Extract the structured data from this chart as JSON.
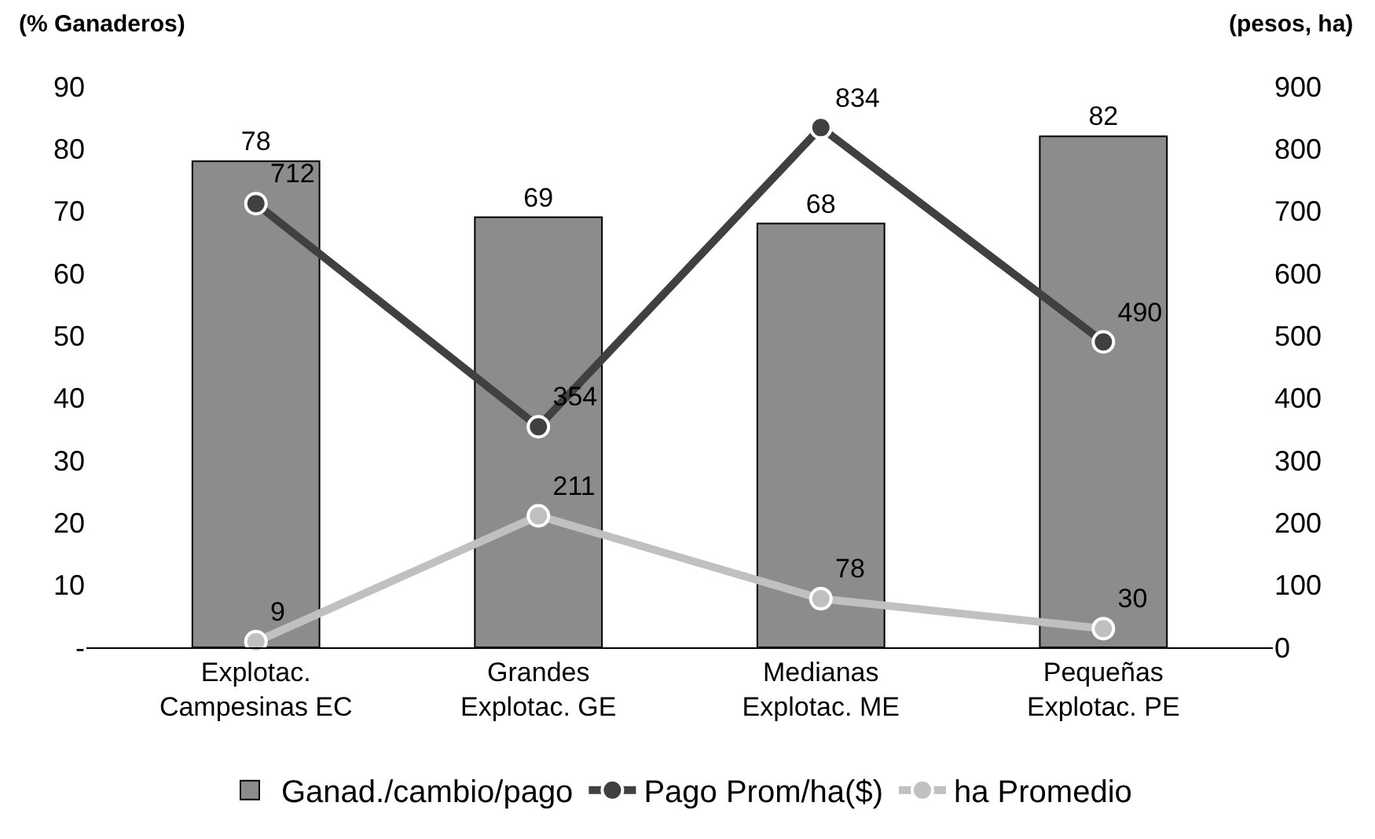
{
  "chart_data": {
    "type": "bar",
    "ylabel": "(% Ganaderos)",
    "y2label": "(pesos, ha)",
    "categories": [
      "Explotac.\nCampesinas EC",
      "Grandes\nExplotac. GE",
      "Medianas\nExplotac. ME",
      "Pequeñas\nExplotac. PE"
    ],
    "series": [
      {
        "name": "Ganad./cambio/pago",
        "color": "#8c8c8c",
        "values": [
          78,
          69,
          68,
          82
        ]
      },
      {
        "name": "Pago Prom/ha($)",
        "type": "line",
        "axis": "y2",
        "color": "#404040",
        "values": [
          712,
          354,
          834,
          490
        ]
      },
      {
        "name": "ha Promedio",
        "type": "line",
        "axis": "y2",
        "color": "#c0c0c0",
        "values": [
          9,
          211,
          78,
          30
        ]
      }
    ],
    "ylim": [
      0,
      90
    ],
    "yticks": [
      {
        "value": 0,
        "label": "-"
      },
      10,
      20,
      30,
      40,
      50,
      60,
      70,
      80,
      90
    ],
    "y2lim": [
      0,
      900
    ],
    "y2ticks": [
      0,
      100,
      200,
      300,
      400,
      500,
      600,
      700,
      800,
      900
    ],
    "data_labels": true,
    "legend": "bottom",
    "marker": "circle",
    "line_style": "solid"
  }
}
